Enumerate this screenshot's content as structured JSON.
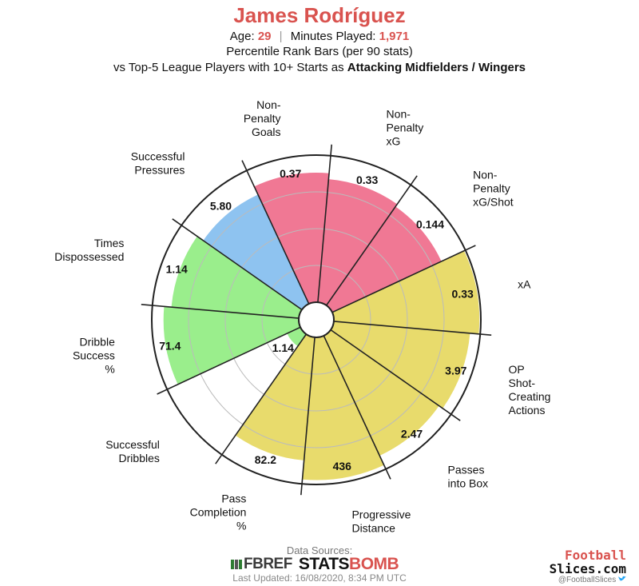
{
  "header": {
    "player_name": "James Rodríguez",
    "age_label": "Age:",
    "age_value": "29",
    "separator": "|",
    "minutes_label": "Minutes Played:",
    "minutes_value": "1,971",
    "subtitle": "Percentile Rank Bars (per 90 stats)",
    "comparison_prefix": "vs Top-5 League Players with 10+ Starts as",
    "comparison_group": "Attacking Midfielders / Wingers"
  },
  "chart_data": {
    "type": "polar_bar",
    "range": [
      0,
      100
    ],
    "colors": {
      "attacking": "#f07894",
      "possession": "#e8db6c",
      "passing": "#f5e676",
      "defending": "#8ec3f0",
      "dribbling": "#9aee8c",
      "grid": "#222222",
      "rings": "#bbbbbb"
    },
    "metrics": [
      {
        "label": [
          "Non-",
          "Penalty",
          "Goals"
        ],
        "stat": "0.37",
        "percentile": 88,
        "group": "attacking"
      },
      {
        "label": [
          "Non-",
          "Penalty",
          "xG"
        ],
        "stat": "0.33",
        "percentile": 84,
        "group": "attacking"
      },
      {
        "label": [
          "Non-",
          "Penalty",
          "xG/Shot"
        ],
        "stat": "0.144",
        "percentile": 82,
        "group": "attacking"
      },
      {
        "label": [
          "xA"
        ],
        "stat": "0.33",
        "percentile": 99,
        "group": "possession"
      },
      {
        "label": [
          "OP",
          "Shot-",
          "Creating",
          "Actions"
        ],
        "stat": "3.97",
        "percentile": 93,
        "group": "possession"
      },
      {
        "label": [
          "Passes",
          "into Box"
        ],
        "stat": "2.47",
        "percentile": 90,
        "group": "possession"
      },
      {
        "label": [
          "Progressive",
          "Distance"
        ],
        "stat": "436",
        "percentile": 97,
        "group": "possession"
      },
      {
        "label": [
          "Pass",
          "Completion",
          "%"
        ],
        "stat": "82.2",
        "percentile": 84,
        "group": "possession"
      },
      {
        "label": [
          "Successful",
          "Dribbles"
        ],
        "stat": "1.14",
        "percentile": 10,
        "group": "dribbling"
      },
      {
        "label": [
          "Dribble",
          "Success",
          "%"
        ],
        "stat": "71.4",
        "percentile": 92,
        "group": "dribbling"
      },
      {
        "label": [
          "Times",
          "Dispossessed"
        ],
        "stat": "1.14",
        "percentile": 87,
        "group": "dribbling"
      },
      {
        "label": [
          "Successful",
          "Pressures"
        ],
        "stat": "5.80",
        "percentile": 82,
        "group": "defending"
      }
    ]
  },
  "footer": {
    "sources_label": "Data Sources:",
    "fbref_text": "FBREF",
    "statsbomb_text_a": "STATS",
    "statsbomb_text_b": "BOMB",
    "last_updated": "Last Updated: 16/08/2020, 8:34 PM UTC",
    "brand_line1": "Football",
    "brand_line2": "Slices.com",
    "brand_handle": "@FootballSlices"
  }
}
